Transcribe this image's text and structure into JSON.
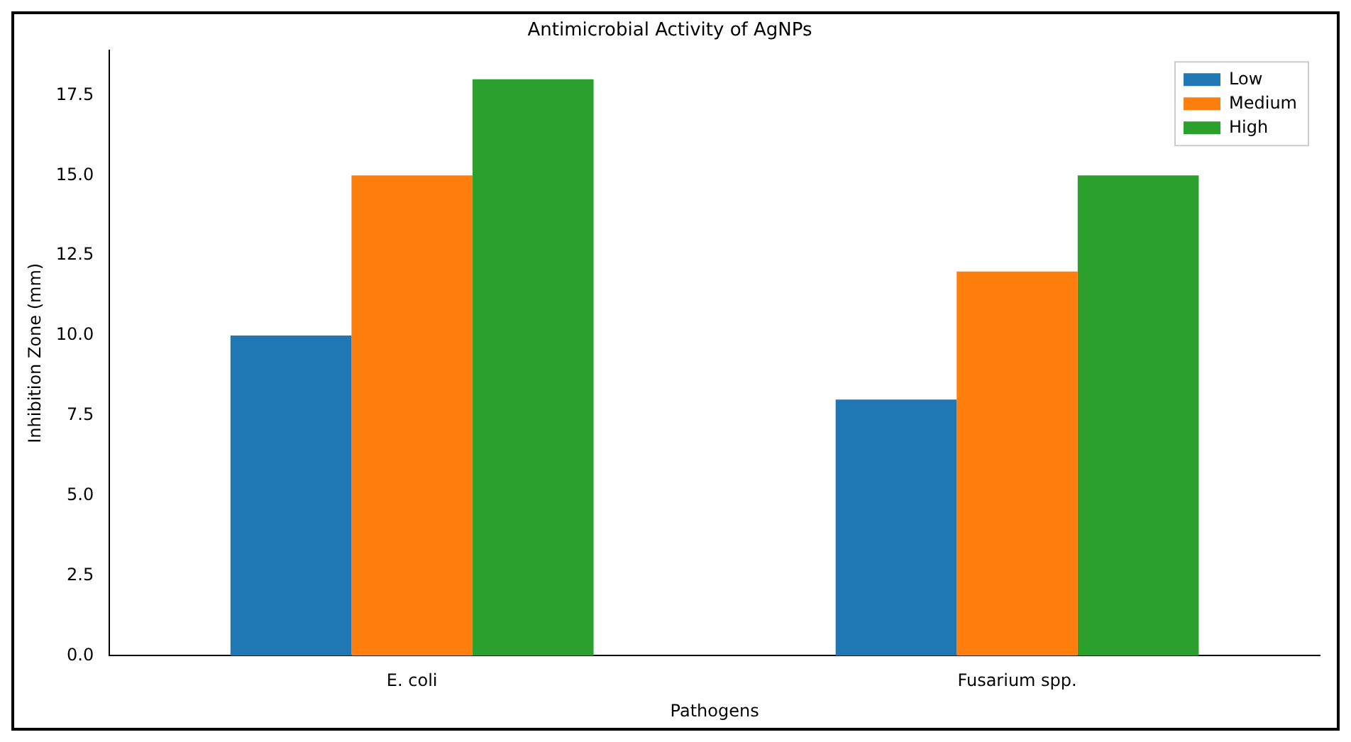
{
  "chart_data": {
    "type": "bar",
    "title": "Antimicrobial Activity of AgNPs",
    "xlabel": "Pathogens",
    "ylabel": "Inhibition Zone (mm)",
    "categories": [
      "E. coli",
      "Fusarium spp."
    ],
    "series": [
      {
        "name": "Low",
        "color": "#1f77b4",
        "values": [
          10,
          8
        ]
      },
      {
        "name": "Medium",
        "color": "#ff7f0e",
        "values": [
          15,
          12
        ]
      },
      {
        "name": "High",
        "color": "#2ca02c",
        "values": [
          18,
          15
        ]
      }
    ],
    "ylim": [
      0,
      18.9
    ],
    "yticks": [
      {
        "value": 0,
        "label": "0.0"
      },
      {
        "value": 2.5,
        "label": "2.5"
      },
      {
        "value": 5,
        "label": "5.0"
      },
      {
        "value": 7.5,
        "label": "7.5"
      },
      {
        "value": 10,
        "label": "10.0"
      },
      {
        "value": 12.5,
        "label": "12.5"
      },
      {
        "value": 15,
        "label": "15.0"
      },
      {
        "value": 17.5,
        "label": "17.5"
      }
    ],
    "grid": false,
    "legend": "top right"
  }
}
